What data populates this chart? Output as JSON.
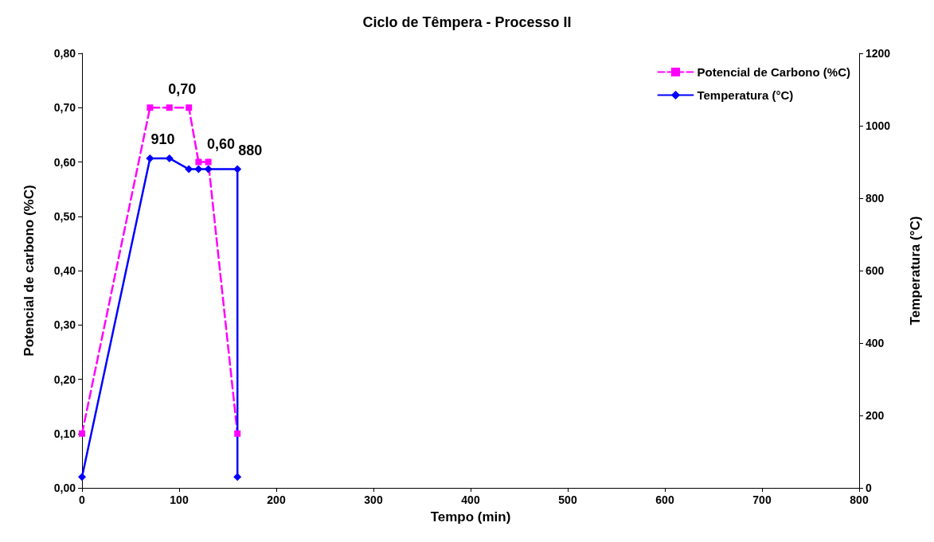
{
  "chart_data": {
    "type": "line",
    "title": "Ciclo de Têmpera - Processo II",
    "xlabel": "Tempo (min)",
    "ylabel": "Potencial de carbono (%C)",
    "y2label": "Temperatura (°C)",
    "xlim": [
      0,
      800
    ],
    "xticks": [
      0,
      100,
      200,
      300,
      400,
      500,
      600,
      700,
      800
    ],
    "ylim": [
      0,
      0.8
    ],
    "yticks": [
      {
        "value": 0,
        "label": "0,00"
      },
      {
        "value": 0.1,
        "label": "0,10"
      },
      {
        "value": 0.2,
        "label": "0,20"
      },
      {
        "value": 0.3,
        "label": "0,30"
      },
      {
        "value": 0.4,
        "label": "0,40"
      },
      {
        "value": 0.5,
        "label": "0,50"
      },
      {
        "value": 0.6,
        "label": "0,60"
      },
      {
        "value": 0.7,
        "label": "0,70"
      },
      {
        "value": 0.8,
        "label": "0,80"
      }
    ],
    "y2lim": [
      0,
      1200
    ],
    "y2ticks": [
      0,
      200,
      400,
      600,
      800,
      1000,
      1200
    ],
    "grid": false,
    "legend": "top right",
    "series": [
      {
        "name": "Potencial de Carbono (%C)",
        "color": "#ff00ff",
        "marker": "square",
        "line_style": "dashed",
        "x": [
          0,
          70,
          90,
          110,
          120,
          130,
          160
        ],
        "values": [
          0.1,
          0.7,
          0.7,
          0.7,
          0.6,
          0.6,
          0.1
        ],
        "value_labels": [
          null,
          null,
          "0,70",
          null,
          null,
          "0,60",
          null
        ]
      },
      {
        "name": "Temperatura (°C)",
        "color": "#0000ff",
        "marker": "diamond",
        "line_style": "solid",
        "axis": "y2",
        "x": [
          0,
          70,
          90,
          110,
          120,
          130,
          160,
          160
        ],
        "values": [
          30,
          910,
          910,
          880,
          880,
          880,
          880,
          30
        ],
        "value_labels": [
          null,
          "910",
          null,
          null,
          null,
          null,
          "880",
          null
        ]
      }
    ]
  }
}
